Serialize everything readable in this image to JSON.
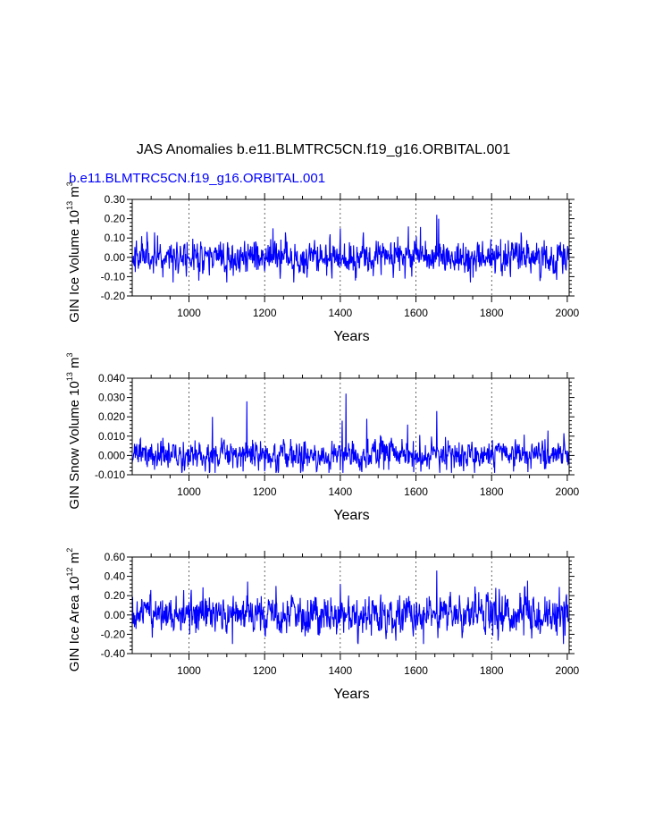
{
  "chart_data": {
    "type": "line",
    "title": "JAS Anomalies b.e11.BLMTRC5CN.f19_g16.ORBITAL.001",
    "subtitle": "b.e11.BLMTRC5CN.f19_g16.ORBITAL.001",
    "line_color": "#0000ff",
    "grid_color": "#000000",
    "x_range": [
      850,
      2005
    ],
    "x_ticks": [
      1000,
      1200,
      1400,
      1600,
      1800,
      2000
    ],
    "x_tick_labels": [
      "1000",
      "1200",
      "1400",
      "1600",
      "1800",
      "2000"
    ],
    "x_gridlines": [
      1000,
      1200,
      1400,
      1600,
      1800
    ],
    "panels": [
      {
        "id": "ice-volume",
        "ylabel_prefix": "GIN Ice Volume 10",
        "ylabel_exp": "13",
        "ylabel_unit": " m",
        "ylabel_unit_exp": "3",
        "xlabel": "Years",
        "ylim": [
          -0.2,
          0.3
        ],
        "y_ticks": [
          -0.2,
          -0.1,
          0.0,
          0.1,
          0.2,
          0.3
        ],
        "y_tick_labels": [
          "-0.20",
          "-0.10",
          "0.00",
          "0.10",
          "0.20",
          "0.30"
        ],
        "series": {
          "name": "Ice Volume",
          "noise": 0.04,
          "clip": [
            -0.13,
            0.22
          ],
          "seed": 11,
          "spikes": [
            [
              1222,
              0.15
            ],
            [
              1400,
              0.15
            ],
            [
              1580,
              0.16
            ],
            [
              1655,
              0.22
            ],
            [
              1660,
              0.2
            ],
            [
              1100,
              -0.13
            ],
            [
              1440,
              -0.12
            ]
          ]
        }
      },
      {
        "id": "snow-volume",
        "ylabel_prefix": "GIN Snow Volume 10",
        "ylabel_exp": "13",
        "ylabel_unit": " m",
        "ylabel_unit_exp": "3",
        "xlabel": "Years",
        "ylim": [
          -0.01,
          0.04
        ],
        "y_ticks": [
          -0.01,
          0.0,
          0.01,
          0.02,
          0.03,
          0.04
        ],
        "y_tick_labels": [
          "-0.010",
          "0.000",
          "0.010",
          "0.020",
          "0.030",
          "0.040"
        ],
        "series": {
          "name": "Snow Volume",
          "noise": 0.0035,
          "clip": [
            -0.009,
            0.032
          ],
          "seed": 23,
          "spikes": [
            [
              1062,
              0.02
            ],
            [
              1153,
              0.028
            ],
            [
              1415,
              0.032
            ],
            [
              1655,
              0.023
            ],
            [
              1405,
              0.018
            ],
            [
              1470,
              0.019
            ],
            [
              1578,
              0.016
            ]
          ]
        }
      },
      {
        "id": "ice-area",
        "ylabel_prefix": "GIN Ice Area 10",
        "ylabel_exp": "12",
        "ylabel_unit": " m",
        "ylabel_unit_exp": "2",
        "xlabel": "Years",
        "ylim": [
          -0.4,
          0.6
        ],
        "y_ticks": [
          -0.4,
          -0.2,
          0.0,
          0.2,
          0.4,
          0.6
        ],
        "y_tick_labels": [
          "-0.40",
          "-0.20",
          "0.00",
          "0.20",
          "0.40",
          "0.60"
        ],
        "series": {
          "name": "Ice Area",
          "noise": 0.09,
          "clip": [
            -0.3,
            0.46
          ],
          "seed": 37,
          "spikes": [
            [
              1655,
              0.46
            ],
            [
              1400,
              0.32
            ],
            [
              1115,
              -0.3
            ],
            [
              1620,
              -0.3
            ],
            [
              1990,
              -0.3
            ],
            [
              1230,
              0.3
            ]
          ]
        }
      }
    ]
  }
}
